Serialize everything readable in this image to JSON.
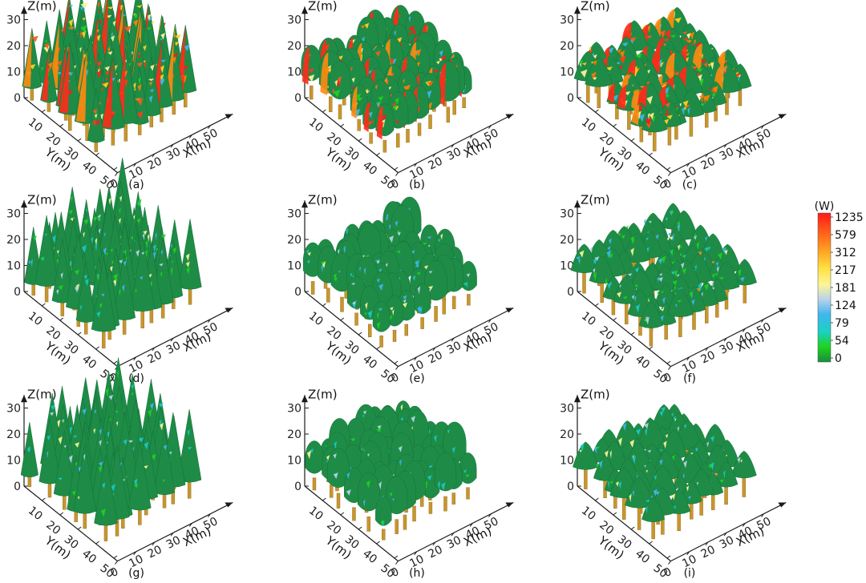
{
  "chart_data": {
    "type": "3d-scene",
    "axes": {
      "z_label": "Z(m)",
      "y_label": "Y(m)",
      "x_label": "X(m)",
      "z_ticks": [
        "0",
        "10",
        "20",
        "30"
      ],
      "y_ticks": [
        "10",
        "20",
        "30",
        "40",
        "50"
      ],
      "x_ticks": [
        "0",
        "10",
        "20",
        "30",
        "40",
        "50"
      ],
      "x_range": [
        0,
        55
      ],
      "y_range": [
        0,
        50
      ],
      "z_range": [
        0,
        30
      ]
    },
    "panels": [
      {
        "label": "(a)",
        "crown_shape": "cone",
        "shading": "high"
      },
      {
        "label": "(b)",
        "crown_shape": "ellipsoid",
        "shading": "high"
      },
      {
        "label": "(c)",
        "crown_shape": "umbrella",
        "shading": "high"
      },
      {
        "label": "(d)",
        "crown_shape": "cone",
        "shading": "medium"
      },
      {
        "label": "(e)",
        "crown_shape": "ellipsoid",
        "shading": "medium"
      },
      {
        "label": "(f)",
        "crown_shape": "umbrella",
        "shading": "medium"
      },
      {
        "label": "(g)",
        "crown_shape": "cone",
        "shading": "low"
      },
      {
        "label": "(h)",
        "crown_shape": "ellipsoid",
        "shading": "low"
      },
      {
        "label": "(i)",
        "crown_shape": "umbrella",
        "shading": "low"
      }
    ],
    "colorbar": {
      "title": "(W)",
      "levels": [
        "1235",
        "579",
        "312",
        "217",
        "181",
        "124",
        "79",
        "54",
        "0"
      ],
      "colors": [
        "#ff1a1a",
        "#ff7f00",
        "#ffd21f",
        "#fff59a",
        "#b8d2ea",
        "#3fb6ee",
        "#19c8c8",
        "#1ed21e",
        "#1a8c3c"
      ]
    }
  },
  "colors": {
    "trunk": "#c8962c",
    "trunk_dark": "#8a6418",
    "canopy": "#1e8c46",
    "canopy_dark": "#14703a",
    "axis": "#1a1a1a"
  }
}
